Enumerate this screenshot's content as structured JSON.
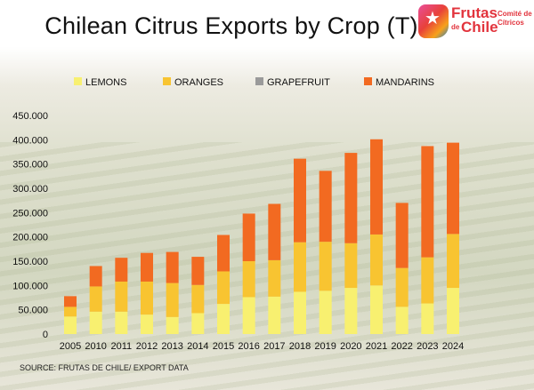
{
  "page": {
    "title": "Chilean Citrus Exports by Crop (T)",
    "source": "SOURCE: FRUTAS DE CHILE/ EXPORT DATA"
  },
  "logo": {
    "brand": "Frutas",
    "de": "de",
    "chile": "Chile",
    "subtitle": "Comité de Cítricos"
  },
  "chart_data": {
    "type": "bar",
    "stacked": true,
    "title": "Chilean Citrus Exports by Crop (T)",
    "categories": [
      "2005",
      "2010",
      "2011",
      "2012",
      "2013",
      "2014",
      "2015",
      "2016",
      "2017",
      "2018",
      "2019",
      "2020",
      "2021",
      "2022",
      "2023",
      "2024"
    ],
    "series": [
      {
        "name": "LEMONS",
        "color": "#f8f070",
        "values": [
          36000,
          46000,
          46000,
          40000,
          35000,
          43000,
          62000,
          76000,
          77000,
          87000,
          89000,
          95000,
          100000,
          56000,
          63000,
          95000
        ]
      },
      {
        "name": "ORANGES",
        "color": "#f8c431",
        "values": [
          20000,
          52000,
          62000,
          68000,
          70000,
          58000,
          67000,
          74000,
          75000,
          102000,
          101000,
          92000,
          105000,
          80000,
          95000,
          111000
        ]
      },
      {
        "name": "GRAPEFRUIT",
        "color": "#9a9a9a",
        "values": [
          0,
          0,
          0,
          0,
          0,
          0,
          0,
          0,
          0,
          0,
          0,
          0,
          0,
          0,
          0,
          0
        ]
      },
      {
        "name": "MANDARINS",
        "color": "#f26a21",
        "values": [
          22000,
          42000,
          49000,
          59000,
          64000,
          58000,
          75000,
          98000,
          116000,
          172000,
          146000,
          186000,
          196000,
          134000,
          229000,
          188000
        ]
      }
    ],
    "ylim": [
      0,
      450000
    ],
    "yticks": [
      "0",
      "50.000",
      "100.000",
      "150.000",
      "200.000",
      "250.000",
      "300.000",
      "350.000",
      "400.000",
      "450.000"
    ],
    "ytick_values": [
      0,
      50000,
      100000,
      150000,
      200000,
      250000,
      300000,
      350000,
      400000,
      450000
    ],
    "grid": false,
    "legend": "top"
  }
}
